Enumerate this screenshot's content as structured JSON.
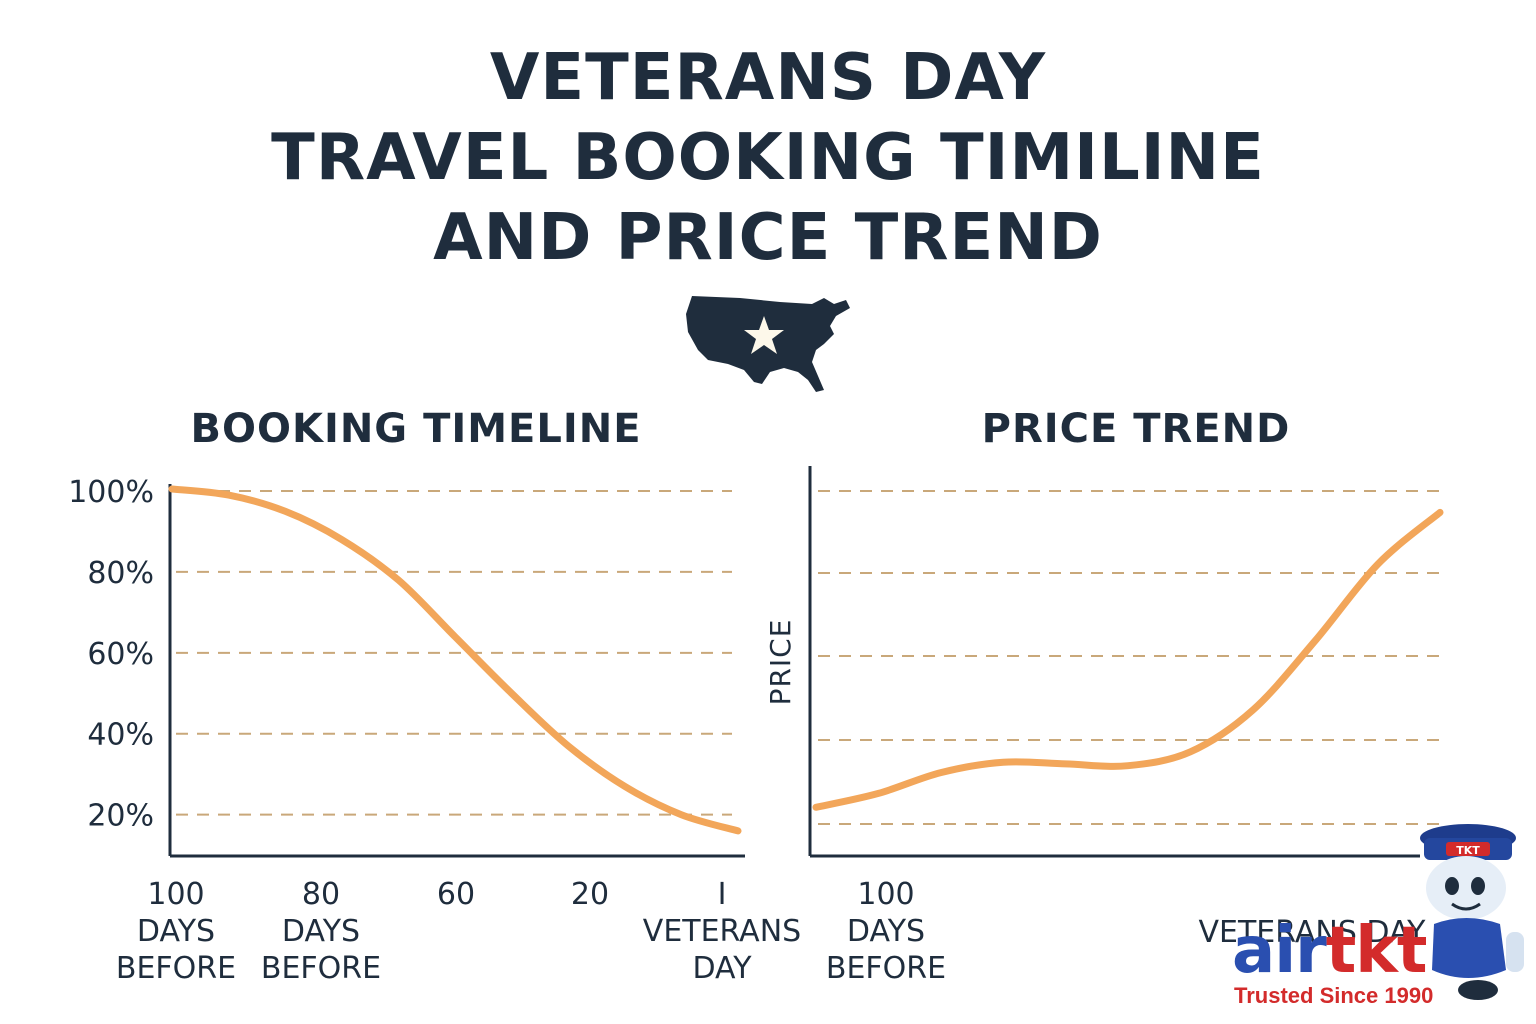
{
  "header": {
    "title_lines": [
      "VETERANS DAY",
      "TRAVEL BOOKING TIMILINE",
      "AND PRICE TREND"
    ]
  },
  "emblem": {
    "icon": "usa-map-star-icon",
    "color": "#1f2d3d"
  },
  "brand": {
    "name_part1": "air",
    "name_part2": "tkt",
    "tagline": "Trusted Since 1990",
    "mascot_badge": "TKT",
    "colors": {
      "primary": "#2a4fb0",
      "accent": "#d32b2b"
    }
  },
  "chart_data": [
    {
      "type": "line",
      "title": "BOOKING TIMELINE",
      "xlabel": "",
      "ylabel": "",
      "y_ticks": [
        "100%",
        "80%",
        "60%",
        "40%",
        "20%"
      ],
      "y_tick_values": [
        100,
        80,
        60,
        40,
        20
      ],
      "ylim": [
        12,
        100
      ],
      "x_tick_labels": [
        [
          "100",
          "DAYS",
          "BEFORE"
        ],
        [
          "80",
          "DAYS",
          "BEFORE"
        ],
        [
          "60"
        ],
        [
          "20"
        ],
        [
          "I",
          "VETERANS",
          "DAY"
        ]
      ],
      "x_tick_positions": [
        0,
        1,
        2,
        3,
        4
      ],
      "xlim": [
        0,
        4
      ],
      "series": [
        {
          "x": [
            0,
            0.4,
            0.8,
            1.2,
            1.6,
            2.0,
            2.4,
            2.8,
            3.2,
            3.6,
            4.0
          ],
          "values": [
            99.5,
            98,
            94,
            87,
            77,
            63,
            49,
            36,
            26,
            19,
            15
          ]
        }
      ],
      "grid": true,
      "color": "#f2a65a"
    },
    {
      "type": "line",
      "title": "PRICE TREND",
      "xlabel": "",
      "ylabel": "PRICE",
      "y_ticks": [],
      "ylim": [
        0,
        100
      ],
      "x_tick_labels": [
        [
          "100",
          "DAYS",
          "BEFORE"
        ],
        [
          "VETERANS DAY"
        ]
      ],
      "x_tick_positions": [
        0.12,
        0.74
      ],
      "xlim": [
        0,
        1
      ],
      "series": [
        {
          "x": [
            0,
            0.1,
            0.2,
            0.3,
            0.4,
            0.5,
            0.6,
            0.7,
            0.8,
            0.9,
            1.0
          ],
          "values": [
            10,
            14,
            20,
            23,
            22.5,
            22,
            26,
            38,
            58,
            80,
            95
          ]
        }
      ],
      "grid": true,
      "color": "#f2a65a"
    }
  ]
}
